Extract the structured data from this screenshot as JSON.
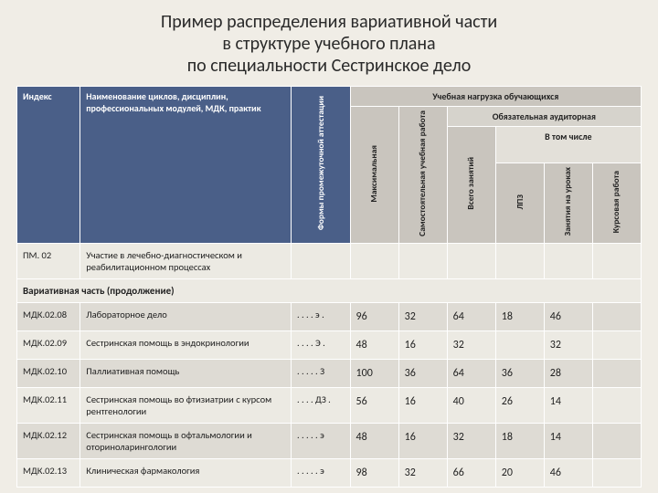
{
  "title": "Пример распределения вариативной части\nв структуре учебного плана\nпо специальности Сестринское дело",
  "headers": {
    "index": "Индекс",
    "name": "Наименование циклов, дисциплин, профессиональных модулей, МДК, практик",
    "forms": "Формы промежуточной аттестации",
    "workload": "Учебная нагрузка обучающихся",
    "max": "Максимальная",
    "self": "Самостоятельная учебная работа",
    "mandatory": "Обязательная аудиторная",
    "total": "Всего занятий",
    "including": "В том числе",
    "lpz": "ЛПЗ",
    "lessons": "Занятия на уроках",
    "coursework": "Курсовая работа"
  },
  "pm_row": {
    "index": "ПМ. 02",
    "name": "Участие в лечебно-диагностическом и реабилитационном процессах"
  },
  "section_label": "Вариативная часть (продолжение)",
  "rows": [
    {
      "idx": "МДК.02.08",
      "name": "Лабораторное дело",
      "forms": ". . . . э .",
      "max": "96",
      "self": "32",
      "total": "64",
      "lpz": "18",
      "lessons": "46",
      "cw": ""
    },
    {
      "idx": "МДК.02.09",
      "name": "Сестринская помощь в эндокринологии",
      "forms": ". . . . Э .",
      "max": "48",
      "self": "16",
      "total": "32",
      "lpz": "",
      "lessons": "32",
      "cw": ""
    },
    {
      "idx": "МДК.02.10",
      "name": "Паллиативная помощь",
      "forms": ". . . . . З",
      "max": "100",
      "self": "36",
      "total": "64",
      "lpz": "36",
      "lessons": "28",
      "cw": ""
    },
    {
      "idx": "МДК.02.11",
      "name": "Сестринская помощь во фтизиатрии с курсом рентгенологии",
      "forms": ". . . . ДЗ .",
      "max": "56",
      "self": "16",
      "total": "40",
      "lpz": "26",
      "lessons": "14",
      "cw": ""
    },
    {
      "idx": "МДК.02.12",
      "name": "Сестринская помощь в офтальмологии и оториноларингологии",
      "forms": ". . . . . э",
      "max": "48",
      "self": "16",
      "total": "32",
      "lpz": "18",
      "lessons": "14",
      "cw": ""
    },
    {
      "idx": "МДК.02.13",
      "name": "Клиническая фармакология",
      "forms": ". . . . . э",
      "max": "98",
      "self": "32",
      "total": "66",
      "lpz": "20",
      "lessons": "46",
      "cw": ""
    }
  ],
  "colors": {
    "page_bg": "#f0ede6",
    "header_blue": "#4a5f88",
    "header_gray": "#c9c5be",
    "row_a": "#dedbd4",
    "row_b": "#eceae3",
    "border": "#ffffff"
  }
}
